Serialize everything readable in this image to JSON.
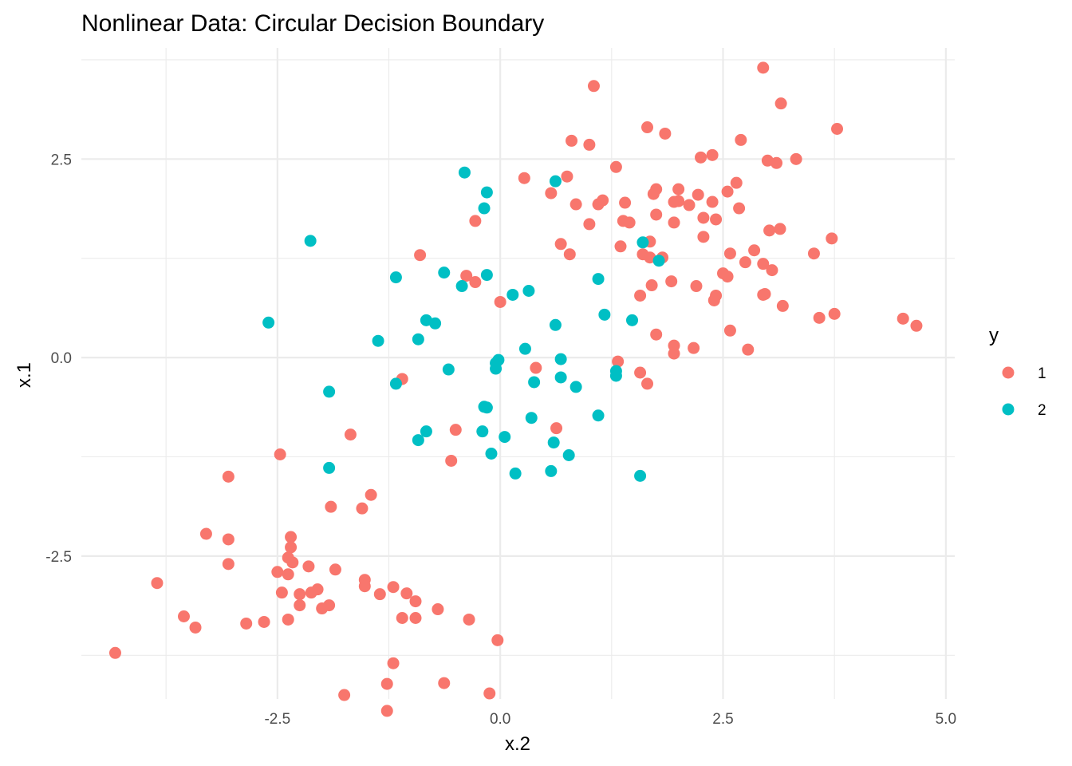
{
  "chart_data": {
    "type": "scatter",
    "title": "Nonlinear Data: Circular Decision Boundary",
    "xlabel": "x.2",
    "ylabel": "x.1",
    "xlim": [
      -4.7,
      5.1
    ],
    "ylim": [
      -4.3,
      3.9
    ],
    "xticks": [
      -2.5,
      0.0,
      2.5,
      5.0
    ],
    "xtick_labels": [
      "-2.5",
      "0.0",
      "2.5",
      "5.0"
    ],
    "yticks": [
      -2.5,
      0.0,
      2.5
    ],
    "ytick_labels": [
      "-2.5",
      "0.0",
      "2.5"
    ],
    "legend": {
      "title": "y",
      "position": "right"
    },
    "series": [
      {
        "name": "1",
        "color": "#F8766D",
        "points": [
          [
            2.95,
            3.65
          ],
          [
            1.05,
            3.42
          ],
          [
            3.15,
            3.2
          ],
          [
            1.65,
            2.9
          ],
          [
            1.85,
            2.82
          ],
          [
            2.7,
            2.74
          ],
          [
            3.78,
            2.88
          ],
          [
            0.8,
            2.73
          ],
          [
            1.0,
            2.68
          ],
          [
            2.25,
            2.52
          ],
          [
            2.38,
            2.55
          ],
          [
            3.32,
            2.5
          ],
          [
            3.0,
            2.48
          ],
          [
            3.1,
            2.45
          ],
          [
            1.3,
            2.4
          ],
          [
            0.27,
            2.26
          ],
          [
            0.75,
            2.28
          ],
          [
            2.65,
            2.2
          ],
          [
            1.75,
            2.12
          ],
          [
            1.72,
            2.06
          ],
          [
            2.0,
            2.12
          ],
          [
            0.57,
            2.07
          ],
          [
            2.55,
            2.09
          ],
          [
            2.22,
            2.05
          ],
          [
            1.15,
            1.98
          ],
          [
            1.1,
            1.93
          ],
          [
            1.4,
            1.95
          ],
          [
            1.95,
            1.96
          ],
          [
            2.12,
            1.92
          ],
          [
            2.38,
            1.96
          ],
          [
            2.68,
            1.88
          ],
          [
            0.85,
            1.93
          ],
          [
            1.38,
            1.72
          ],
          [
            2.28,
            1.76
          ],
          [
            1.45,
            1.7
          ],
          [
            1.75,
            1.8
          ],
          [
            2.0,
            1.97
          ],
          [
            2.42,
            1.74
          ],
          [
            1.95,
            1.7
          ],
          [
            1.0,
            1.68
          ],
          [
            3.02,
            1.6
          ],
          [
            3.14,
            1.62
          ],
          [
            2.28,
            1.52
          ],
          [
            1.68,
            1.46
          ],
          [
            1.35,
            1.4
          ],
          [
            0.68,
            1.43
          ],
          [
            3.72,
            1.5
          ],
          [
            3.52,
            1.31
          ],
          [
            0.78,
            1.3
          ],
          [
            1.6,
            1.3
          ],
          [
            1.68,
            1.26
          ],
          [
            2.58,
            1.31
          ],
          [
            1.82,
            1.26
          ],
          [
            2.85,
            1.35
          ],
          [
            2.75,
            1.2
          ],
          [
            2.95,
            1.18
          ],
          [
            3.05,
            1.1
          ],
          [
            2.55,
            1.02
          ],
          [
            2.5,
            1.06
          ],
          [
            1.7,
            0.91
          ],
          [
            1.92,
            0.96
          ],
          [
            2.2,
            0.9
          ],
          [
            2.95,
            0.79
          ],
          [
            2.97,
            0.8
          ],
          [
            2.42,
            0.78
          ],
          [
            2.4,
            0.72
          ],
          [
            3.17,
            0.65
          ],
          [
            3.58,
            0.5
          ],
          [
            3.75,
            0.55
          ],
          [
            1.57,
            0.78
          ],
          [
            4.52,
            0.49
          ],
          [
            4.67,
            0.4
          ],
          [
            1.75,
            0.29
          ],
          [
            1.95,
            0.15
          ],
          [
            2.58,
            0.34
          ],
          [
            2.17,
            0.12
          ],
          [
            1.95,
            0.05
          ],
          [
            2.78,
            0.1
          ],
          [
            1.32,
            -0.05
          ],
          [
            1.57,
            -0.19
          ],
          [
            1.65,
            -0.33
          ],
          [
            0.4,
            -0.13
          ],
          [
            0.63,
            -0.89
          ],
          [
            -0.5,
            -0.91
          ],
          [
            -0.55,
            -1.3
          ],
          [
            -1.1,
            -0.27
          ],
          [
            -0.38,
            1.03
          ],
          [
            -0.9,
            1.29
          ],
          [
            -0.28,
            0.95
          ],
          [
            0.0,
            0.7
          ],
          [
            -0.28,
            1.72
          ],
          [
            -1.68,
            -0.97
          ],
          [
            -2.47,
            -1.22
          ],
          [
            -3.05,
            -1.5
          ],
          [
            -1.45,
            -1.73
          ],
          [
            -1.55,
            -1.9
          ],
          [
            -1.9,
            -1.88
          ],
          [
            -3.3,
            -2.22
          ],
          [
            -3.05,
            -2.29
          ],
          [
            -2.35,
            -2.26
          ],
          [
            -2.35,
            -2.39
          ],
          [
            -3.05,
            -2.6
          ],
          [
            -2.5,
            -2.7
          ],
          [
            -2.33,
            -2.58
          ],
          [
            -2.38,
            -2.52
          ],
          [
            -2.15,
            -2.63
          ],
          [
            -1.85,
            -2.67
          ],
          [
            -2.25,
            -2.98
          ],
          [
            -2.38,
            -2.73
          ],
          [
            -3.85,
            -2.84
          ],
          [
            -2.45,
            -2.96
          ],
          [
            -2.05,
            -2.92
          ],
          [
            -2.12,
            -2.96
          ],
          [
            -1.52,
            -2.8
          ],
          [
            -1.52,
            -2.88
          ],
          [
            -1.2,
            -2.89
          ],
          [
            -1.05,
            -2.97
          ],
          [
            -1.35,
            -2.98
          ],
          [
            -0.95,
            -3.07
          ],
          [
            -1.92,
            -3.12
          ],
          [
            -2.0,
            -3.16
          ],
          [
            -0.7,
            -3.17
          ],
          [
            -2.25,
            -3.12
          ],
          [
            -1.1,
            -3.28
          ],
          [
            -0.95,
            -3.28
          ],
          [
            -0.35,
            -3.3
          ],
          [
            -2.38,
            -3.3
          ],
          [
            -2.65,
            -3.33
          ],
          [
            -2.85,
            -3.35
          ],
          [
            -3.55,
            -3.26
          ],
          [
            -3.42,
            -3.4
          ],
          [
            -0.03,
            -3.56
          ],
          [
            -4.32,
            -3.72
          ],
          [
            -1.2,
            -3.85
          ],
          [
            -1.27,
            -4.11
          ],
          [
            -0.63,
            -4.1
          ],
          [
            -1.75,
            -4.25
          ],
          [
            -0.12,
            -4.23
          ],
          [
            -1.27,
            -4.45
          ]
        ]
      },
      {
        "name": "2",
        "color": "#00BFC4",
        "points": [
          [
            -0.4,
            2.33
          ],
          [
            -0.15,
            2.08
          ],
          [
            -0.18,
            1.88
          ],
          [
            0.62,
            2.22
          ],
          [
            -2.13,
            1.47
          ],
          [
            1.6,
            1.45
          ],
          [
            1.78,
            1.22
          ],
          [
            -1.17,
            1.01
          ],
          [
            -0.63,
            1.07
          ],
          [
            -0.43,
            0.9
          ],
          [
            -0.15,
            1.04
          ],
          [
            0.14,
            0.79
          ],
          [
            0.32,
            0.84
          ],
          [
            1.1,
            0.99
          ],
          [
            1.17,
            0.54
          ],
          [
            1.48,
            0.47
          ],
          [
            -2.6,
            0.44
          ],
          [
            -0.83,
            0.47
          ],
          [
            -0.73,
            0.43
          ],
          [
            0.62,
            0.41
          ],
          [
            -1.37,
            0.21
          ],
          [
            -0.92,
            0.23
          ],
          [
            0.28,
            0.11
          ],
          [
            -0.58,
            -0.15
          ],
          [
            -0.05,
            -0.07
          ],
          [
            -0.02,
            -0.03
          ],
          [
            0.68,
            -0.02
          ],
          [
            -0.05,
            -0.14
          ],
          [
            1.3,
            -0.17
          ],
          [
            1.3,
            -0.23
          ],
          [
            0.68,
            -0.25
          ],
          [
            0.38,
            -0.31
          ],
          [
            -1.17,
            -0.33
          ],
          [
            0.85,
            -0.37
          ],
          [
            -1.92,
            -0.43
          ],
          [
            -0.18,
            -0.62
          ],
          [
            -0.15,
            -0.63
          ],
          [
            1.1,
            -0.73
          ],
          [
            0.35,
            -0.76
          ],
          [
            -0.83,
            -0.93
          ],
          [
            -0.2,
            -0.93
          ],
          [
            0.05,
            -1.0
          ],
          [
            -0.92,
            -1.04
          ],
          [
            0.6,
            -1.07
          ],
          [
            -0.1,
            -1.21
          ],
          [
            0.77,
            -1.23
          ],
          [
            -1.92,
            -1.39
          ],
          [
            0.57,
            -1.43
          ],
          [
            0.17,
            -1.46
          ],
          [
            1.57,
            -1.49
          ]
        ]
      }
    ]
  }
}
